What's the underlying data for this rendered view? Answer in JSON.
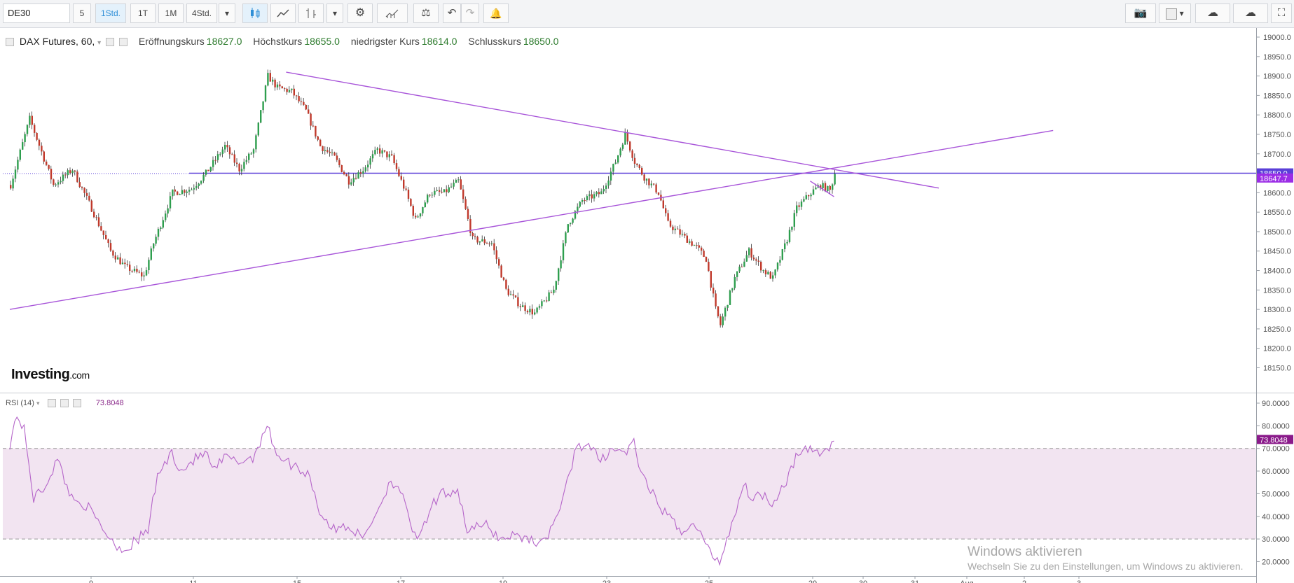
{
  "toolbar": {
    "symbol": "DE30",
    "intervals": [
      "5",
      "1Std.",
      "1T",
      "1M",
      "4Std."
    ],
    "active_interval": "1Std.",
    "colors": {
      "active": "#2f8fd7"
    },
    "icons_left": [
      "candles-icon",
      "line-chart-icon",
      "bars-icon",
      "settings-gear-icon",
      "indicators-icon",
      "compare-scale-icon",
      "undo-icon",
      "redo-icon",
      "alert-bell-icon"
    ],
    "icons_right": [
      "camera-icon",
      "color-square-icon",
      "cloud-download-icon",
      "cloud-upload-icon",
      "fullscreen-icon"
    ]
  },
  "legend": {
    "title": "DAX Futures, 60,",
    "open_label": "Eröffnungskurs",
    "open_value": "18627.0",
    "high_label": "Höchstkurs",
    "high_value": "18655.0",
    "low_label": "niedrigster Kurs",
    "low_value": "18614.0",
    "close_label": "Schlusskurs",
    "close_value": "18650.0"
  },
  "rsi_legend": {
    "label": "RSI (14)",
    "value": "73.8048"
  },
  "logo": {
    "main": "Investing",
    "suffix": ".com"
  },
  "watermark": {
    "line1": "Windows aktivieren",
    "line2": "Wechseln Sie zu den Einstellungen, um Windows zu aktivieren."
  },
  "chart_data": [
    {
      "type": "candlestick",
      "instrument": "DAX Futures",
      "ylim": [
        18100,
        19020
      ],
      "yticks": [
        18150,
        18200,
        18250,
        18300,
        18350,
        18400,
        18450,
        18500,
        18550,
        18600,
        18650,
        18700,
        18750,
        18800,
        18850,
        18900,
        18950,
        19000
      ],
      "price_labels": [
        {
          "value": "18650.0",
          "y": 18650,
          "color": "#5b3fd8"
        },
        {
          "value": "18647.7",
          "y": 18647.7,
          "color": "#9b2de6"
        }
      ],
      "horizontal_line": 18650,
      "x_ticks": [
        "9",
        "11",
        "15",
        "17",
        "19",
        "23",
        "25",
        "29",
        "30",
        "31",
        "Aug",
        "2",
        "3"
      ],
      "anchors": [
        [
          0,
          18620
        ],
        [
          8,
          18790
        ],
        [
          18,
          18620
        ],
        [
          26,
          18660
        ],
        [
          34,
          18560
        ],
        [
          42,
          18450
        ],
        [
          48,
          18410
        ],
        [
          56,
          18385
        ],
        [
          60,
          18470
        ],
        [
          68,
          18600
        ],
        [
          76,
          18610
        ],
        [
          82,
          18650
        ],
        [
          90,
          18720
        ],
        [
          96,
          18660
        ],
        [
          102,
          18710
        ],
        [
          108,
          18900
        ],
        [
          112,
          18870
        ],
        [
          118,
          18860
        ],
        [
          124,
          18810
        ],
        [
          130,
          18720
        ],
        [
          136,
          18690
        ],
        [
          142,
          18630
        ],
        [
          148,
          18660
        ],
        [
          154,
          18710
        ],
        [
          160,
          18690
        ],
        [
          166,
          18600
        ],
        [
          170,
          18530
        ],
        [
          176,
          18600
        ],
        [
          182,
          18600
        ],
        [
          188,
          18630
        ],
        [
          194,
          18480
        ],
        [
          202,
          18470
        ],
        [
          208,
          18350
        ],
        [
          214,
          18310
        ],
        [
          220,
          18290
        ],
        [
          228,
          18350
        ],
        [
          234,
          18520
        ],
        [
          240,
          18580
        ],
        [
          248,
          18600
        ],
        [
          254,
          18680
        ],
        [
          258,
          18750
        ],
        [
          262,
          18680
        ],
        [
          266,
          18640
        ],
        [
          272,
          18600
        ],
        [
          276,
          18520
        ],
        [
          282,
          18490
        ],
        [
          288,
          18460
        ],
        [
          292,
          18430
        ],
        [
          296,
          18300
        ],
        [
          298,
          18260
        ],
        [
          304,
          18380
        ],
        [
          310,
          18450
        ],
        [
          316,
          18400
        ],
        [
          320,
          18380
        ],
        [
          326,
          18480
        ],
        [
          330,
          18560
        ],
        [
          336,
          18600
        ],
        [
          340,
          18620
        ],
        [
          344,
          18605
        ],
        [
          346,
          18650
        ]
      ],
      "trendlines": [
        {
          "from": [
            0,
            18300
          ],
          "to": [
            438,
            18760
          ]
        },
        {
          "from": [
            116,
            18910
          ],
          "to": [
            390,
            18612
          ]
        },
        {
          "from": [
            336,
            18630
          ],
          "to": [
            346,
            18590
          ]
        }
      ],
      "candle_colors": {
        "up": "#2e9e4e",
        "down": "#c0392b"
      },
      "line_colors": {
        "trendline": "#a855d9",
        "price_line": "#5b3fd8"
      }
    },
    {
      "type": "line",
      "name": "RSI (14)",
      "ylim": [
        15,
        95
      ],
      "yticks": [
        "20.0000",
        "30.0000",
        "40.0000",
        "50.0000",
        "60.0000",
        "70.0000",
        "80.0000",
        "90.0000"
      ],
      "band": [
        30,
        70
      ],
      "current": "73.8048",
      "anchors": [
        [
          0,
          72
        ],
        [
          3,
          85
        ],
        [
          6,
          78
        ],
        [
          10,
          48
        ],
        [
          14,
          52
        ],
        [
          20,
          65
        ],
        [
          26,
          48
        ],
        [
          32,
          45
        ],
        [
          38,
          36
        ],
        [
          44,
          28
        ],
        [
          48,
          25
        ],
        [
          54,
          30
        ],
        [
          58,
          34
        ],
        [
          62,
          58
        ],
        [
          68,
          68
        ],
        [
          72,
          60
        ],
        [
          76,
          64
        ],
        [
          82,
          68
        ],
        [
          86,
          60
        ],
        [
          90,
          66
        ],
        [
          96,
          64
        ],
        [
          102,
          66
        ],
        [
          108,
          80
        ],
        [
          112,
          68
        ],
        [
          116,
          64
        ],
        [
          120,
          62
        ],
        [
          126,
          58
        ],
        [
          130,
          42
        ],
        [
          136,
          34
        ],
        [
          142,
          36
        ],
        [
          148,
          30
        ],
        [
          154,
          42
        ],
        [
          160,
          56
        ],
        [
          164,
          52
        ],
        [
          168,
          36
        ],
        [
          172,
          30
        ],
        [
          178,
          46
        ],
        [
          182,
          50
        ],
        [
          188,
          52
        ],
        [
          192,
          34
        ],
        [
          200,
          36
        ],
        [
          206,
          30
        ],
        [
          212,
          32
        ],
        [
          218,
          30
        ],
        [
          224,
          28
        ],
        [
          232,
          46
        ],
        [
          238,
          72
        ],
        [
          244,
          70
        ],
        [
          248,
          64
        ],
        [
          252,
          70
        ],
        [
          258,
          68
        ],
        [
          262,
          72
        ],
        [
          266,
          56
        ],
        [
          272,
          46
        ],
        [
          276,
          40
        ],
        [
          282,
          34
        ],
        [
          288,
          36
        ],
        [
          294,
          24
        ],
        [
          298,
          20
        ],
        [
          304,
          40
        ],
        [
          308,
          54
        ],
        [
          312,
          48
        ],
        [
          316,
          50
        ],
        [
          320,
          46
        ],
        [
          326,
          56
        ],
        [
          330,
          66
        ],
        [
          336,
          70
        ],
        [
          340,
          68
        ],
        [
          344,
          70
        ],
        [
          346,
          74
        ]
      ],
      "line_color": "#b565c9",
      "band_color": "#f2e4f1"
    }
  ]
}
